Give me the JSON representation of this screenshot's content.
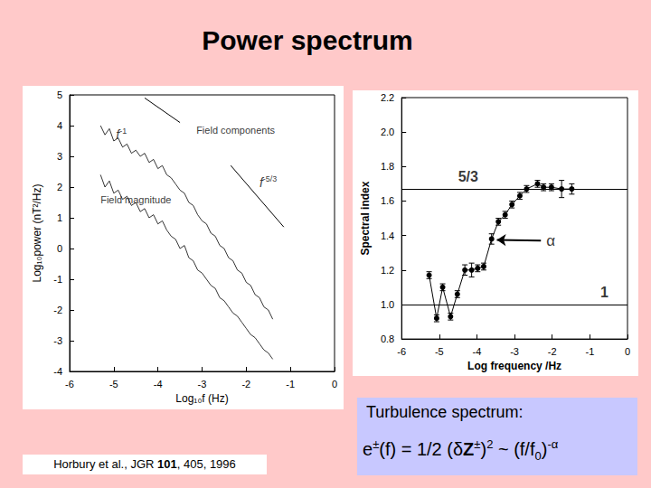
{
  "title": "Power spectrum",
  "citation": [
    {
      "text": "Horbury et al., JGR "
    },
    {
      "text": "101",
      "style": "bold"
    },
    {
      "text": ", 405, 1996"
    }
  ],
  "caption": {
    "heading": "Turbulence spectrum:",
    "formula": [
      {
        "text": "e"
      },
      {
        "text": "±",
        "style": "sup"
      },
      {
        "text": "(f) = 1/2 (δ"
      },
      {
        "text": "Z",
        "style": "bold"
      },
      {
        "text": "±",
        "style": "sup"
      },
      {
        "text": ")"
      },
      {
        "text": "2",
        "style": "sup"
      },
      {
        "text": " ~ (f/f"
      },
      {
        "text": "0",
        "style": "sub"
      },
      {
        "text": ")"
      },
      {
        "text": "-α",
        "style": "sup"
      }
    ]
  },
  "chart_data": [
    {
      "type": "line",
      "xlabel": "Log₁₀f (Hz)",
      "ylabel": "Log₁₀power (nT²/Hz)",
      "xlim": [
        -6,
        0
      ],
      "xticks": [
        -6,
        -5,
        -4,
        -3,
        -2,
        -1,
        0
      ],
      "ylim": [
        -4,
        5
      ],
      "yticks": [
        -4,
        -3,
        -2,
        -1,
        0,
        1,
        2,
        3,
        4,
        5
      ],
      "grid": false,
      "x": [
        -5.3,
        -5.2,
        -5.1,
        -5.0,
        -4.9,
        -4.8,
        -4.7,
        -4.6,
        -4.5,
        -4.4,
        -4.3,
        -4.2,
        -4.1,
        -4.0,
        -3.9,
        -3.8,
        -3.7,
        -3.6,
        -3.5,
        -3.4,
        -3.3,
        -3.2,
        -3.1,
        -3.0,
        -2.9,
        -2.8,
        -2.7,
        -2.6,
        -2.5,
        -2.4,
        -2.3,
        -2.2,
        -2.1,
        -2.0,
        -1.9,
        -1.8,
        -1.7,
        -1.6,
        -1.5,
        -1.4
      ],
      "series": [
        {
          "name": "Field components",
          "color": "#000000",
          "label_at": [
            -3.13,
            3.85
          ],
          "values": [
            4.0,
            3.7,
            3.9,
            3.5,
            3.6,
            3.3,
            3.4,
            3.1,
            3.2,
            3.0,
            3.1,
            2.8,
            2.9,
            2.6,
            2.7,
            2.4,
            2.3,
            2.1,
            1.9,
            1.8,
            1.5,
            1.4,
            1.1,
            0.9,
            0.8,
            0.5,
            0.4,
            0.1,
            0.0,
            -0.3,
            -0.4,
            -0.7,
            -0.8,
            -1.1,
            -1.2,
            -1.5,
            -1.6,
            -1.9,
            -2.0,
            -2.3
          ]
        },
        {
          "name": "Field magnitude",
          "color": "#000000",
          "label_at": [
            -5.3,
            1.6
          ],
          "values": [
            2.4,
            2.0,
            2.2,
            1.8,
            1.9,
            1.6,
            1.7,
            1.4,
            1.5,
            1.2,
            1.3,
            1.0,
            1.1,
            0.8,
            0.9,
            0.6,
            0.4,
            0.3,
            0.0,
            0.1,
            -0.3,
            -0.4,
            -0.7,
            -0.8,
            -1.0,
            -1.2,
            -1.3,
            -1.6,
            -1.7,
            -1.9,
            -2.1,
            -2.2,
            -2.4,
            -2.6,
            -2.8,
            -2.9,
            -3.1,
            -3.3,
            -3.4,
            -3.6
          ]
        }
      ],
      "reference_lines": [
        {
          "label": {
            "base": "f",
            "sup": "-1"
          },
          "label_at": [
            -4.95,
            3.7
          ],
          "x": [
            -4.3,
            -3.5
          ],
          "y": [
            4.9,
            4.1
          ]
        },
        {
          "label": {
            "base": "f",
            "sup": "-5/3"
          },
          "label_at": [
            -1.7,
            2.15
          ],
          "x": [
            -2.35,
            -1.15
          ],
          "y": [
            2.7,
            0.7
          ]
        }
      ]
    },
    {
      "type": "line",
      "marker": "circle",
      "color": "#000000",
      "xlabel": "Log frequency /Hz",
      "ylabel": "Spectral index",
      "xlim": [
        -6,
        0
      ],
      "xticks": [
        -6,
        -5,
        -4,
        -3,
        -2,
        -1,
        0
      ],
      "ylim": [
        0.8,
        2.2
      ],
      "yticks": [
        0.8,
        {
          "value": 1,
          "label": "1.0"
        },
        1.2,
        1.4,
        1.6,
        1.8,
        {
          "value": 2,
          "label": "2.0"
        },
        2.2
      ],
      "grid": false,
      "x": [
        -5.27,
        -5.07,
        -4.91,
        -4.7,
        -4.52,
        -4.32,
        -4.14,
        -3.98,
        -3.82,
        -3.61,
        -3.43,
        -3.25,
        -3.07,
        -2.86,
        -2.68,
        -2.39,
        -2.23,
        -2.02,
        -1.75,
        -1.48
      ],
      "values": [
        1.17,
        0.92,
        1.1,
        0.93,
        1.06,
        1.2,
        1.2,
        1.21,
        1.22,
        1.38,
        1.48,
        1.52,
        1.58,
        1.63,
        1.67,
        1.7,
        1.68,
        1.68,
        1.67,
        1.67
      ],
      "errors": [
        0.02,
        0.02,
        0.02,
        0.02,
        0.02,
        0.03,
        0.04,
        0.02,
        0.02,
        0.03,
        0.02,
        0.02,
        0.02,
        0.02,
        0.02,
        0.02,
        0.02,
        0.02,
        0.05,
        0.03
      ],
      "reference_lines": [
        {
          "y": 1.667,
          "label": "5/3",
          "label_at": [
            -4.5,
            1.74
          ]
        },
        {
          "y": 1,
          "label": "1",
          "label_at": [
            -0.72,
            1.07
          ]
        }
      ],
      "annotations": [
        {
          "text": "α",
          "x": -2.3,
          "y": 1.37,
          "points_to": [
            -3.47,
            1.375
          ]
        }
      ]
    }
  ]
}
